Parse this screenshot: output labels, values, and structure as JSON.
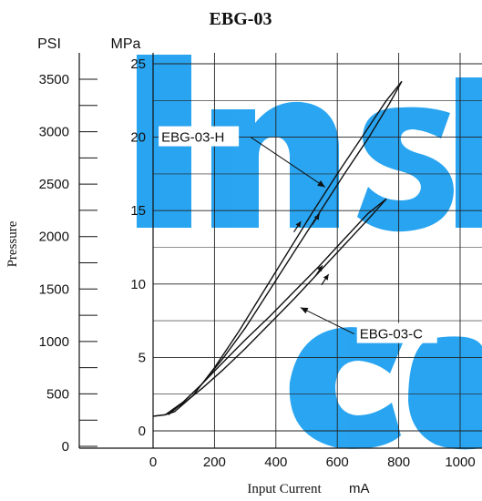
{
  "chart_data": {
    "type": "line",
    "title": "EBG-03",
    "xlabel": "Input Current",
    "xunit": "mA",
    "ylabel": "Pressure",
    "y_left_unit": "PSI",
    "y_right_unit": "MPa",
    "xlim": [
      0,
      1000
    ],
    "ylim": [
      0,
      25
    ],
    "psi_lim": [
      0,
      3600
    ],
    "x_ticks": [
      "0",
      "200",
      "400",
      "600",
      "800",
      "1000"
    ],
    "mpa_ticks": [
      "0",
      "5",
      "10",
      "15",
      "20",
      "25"
    ],
    "psi_ticks": [
      "0",
      "500",
      "1000",
      "1500",
      "2000",
      "2500",
      "3000",
      "3500"
    ],
    "grid": true,
    "watermark": "Inst Ce",
    "watermark_color": "#1ea0f0",
    "series": [
      {
        "name": "EBG-03-H",
        "rising": {
          "x": [
            0,
            40,
            100,
            160,
            230,
            300,
            380,
            460,
            540,
            620,
            700,
            770,
            810
          ],
          "y": [
            1.0,
            1.1,
            2.0,
            3.2,
            5.0,
            7.0,
            9.6,
            12.2,
            14.8,
            17.4,
            19.9,
            22.3,
            23.8
          ]
        },
        "falling": {
          "x": [
            810,
            760,
            680,
            600,
            520,
            440,
            360,
            280,
            200,
            130,
            70,
            40
          ],
          "y": [
            23.8,
            22.5,
            20.0,
            17.5,
            14.9,
            12.2,
            9.5,
            6.8,
            4.3,
            2.4,
            1.3,
            1.1
          ]
        }
      },
      {
        "name": "EBG-03-C",
        "rising": {
          "x": [
            0,
            40,
            100,
            160,
            230,
            300,
            380,
            460,
            540,
            620,
            700,
            760
          ],
          "y": [
            1.0,
            1.1,
            1.9,
            2.9,
            4.2,
            5.6,
            7.3,
            9.0,
            10.8,
            12.6,
            14.4,
            15.8
          ]
        },
        "falling": {
          "x": [
            760,
            700,
            620,
            540,
            460,
            380,
            300,
            220,
            150,
            90,
            50
          ],
          "y": [
            15.8,
            14.8,
            13.0,
            11.2,
            9.5,
            7.8,
            6.2,
            4.5,
            3.0,
            1.8,
            1.1
          ]
        }
      }
    ],
    "annotations": [
      {
        "text": "EBG-03-H",
        "target_x": 560,
        "target_y": 16.6,
        "label_x": 300,
        "label_y": 20.0
      },
      {
        "text": "EBG-03-C",
        "target_x": 480,
        "target_y": 8.4,
        "label_x": 655,
        "label_y": 6.6
      }
    ],
    "arrows": [
      {
        "x": 470,
        "y": 13.9,
        "dir": "down"
      },
      {
        "x": 530,
        "y": 14.4,
        "dir": "up"
      },
      {
        "x": 540,
        "y": 10.9,
        "dir": "down"
      },
      {
        "x": 560,
        "y": 10.3,
        "dir": "up"
      }
    ]
  }
}
